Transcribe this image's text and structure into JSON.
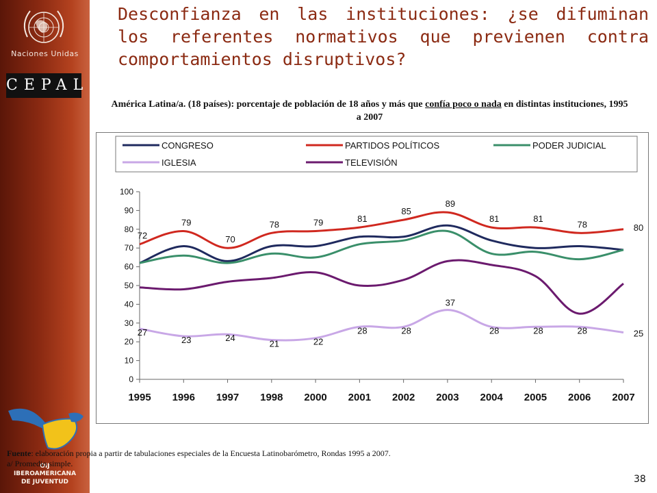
{
  "slide": {
    "title": "Desconfianza en las instituciones:  ¿se difuminan los referentes normativos que previenen contra comportamientos disruptivos?",
    "un_label": "Naciones Unidas",
    "cepal_label": "CEPAL",
    "oij_label_1": "OIJ",
    "oij_label_2": "IBEROAMERICANA",
    "oij_label_3": "DE JUVENTUD",
    "source_bold": "Fuente",
    "source_text": ": elaboración propia a partir de tabulaciones especiales de la Encuesta Latinobarómetro, Rondas 1995 a 2007.",
    "note": "a/ Promedio simple.",
    "page_number": "38"
  },
  "chart_title": {
    "part1": "América Latina/a. (18 países): porcentaje de población de 18 años y más que ",
    "underlined": "confía poco o nada",
    "part2": " en distintas instituciones, 1995 a 2007"
  },
  "chart_data": {
    "type": "line",
    "categories": [
      "1995",
      "1996",
      "1997",
      "1998",
      "2000",
      "2001",
      "2002",
      "2003",
      "2004",
      "2005",
      "2006",
      "2007"
    ],
    "ylim": [
      0,
      100
    ],
    "yticks": [
      "0",
      "10",
      "20",
      "30",
      "40",
      "50",
      "60",
      "70",
      "80",
      "90",
      "100"
    ],
    "grid": false,
    "legend_position": "top",
    "series": [
      {
        "name": "CONGRESO",
        "color": "#1f2a5e",
        "values": [
          62,
          71,
          63,
          71,
          71,
          76,
          76,
          82,
          74,
          70,
          71,
          69
        ],
        "labels": []
      },
      {
        "name": "PARTIDOS POLÍTICOS",
        "color": "#d0281f",
        "values": [
          72,
          79,
          70,
          78,
          79,
          81,
          85,
          89,
          81,
          81,
          78,
          80
        ],
        "labels": [
          "72",
          "79",
          "70",
          "78",
          "79",
          "81",
          "85",
          "89",
          "81",
          "81",
          "78",
          "80"
        ]
      },
      {
        "name": "PODER JUDICIAL",
        "color": "#3a8f6a",
        "values": [
          62,
          66,
          62,
          67,
          65,
          72,
          74,
          79,
          67,
          68,
          64,
          69
        ],
        "labels": []
      },
      {
        "name": "IGLESIA",
        "color": "#c8a7e6",
        "values": [
          27,
          23,
          24,
          21,
          22,
          28,
          28,
          37,
          28,
          28,
          28,
          25
        ],
        "labels": [
          "27",
          "23",
          "24",
          "21",
          "22",
          "28",
          "28",
          "37",
          "28",
          "28",
          "28",
          "25"
        ]
      },
      {
        "name": "TELEVISIÓN",
        "color": "#6b1a6e",
        "values": [
          49,
          48,
          52,
          54,
          57,
          50,
          53,
          63,
          61,
          55,
          35,
          51
        ],
        "labels": []
      }
    ]
  }
}
